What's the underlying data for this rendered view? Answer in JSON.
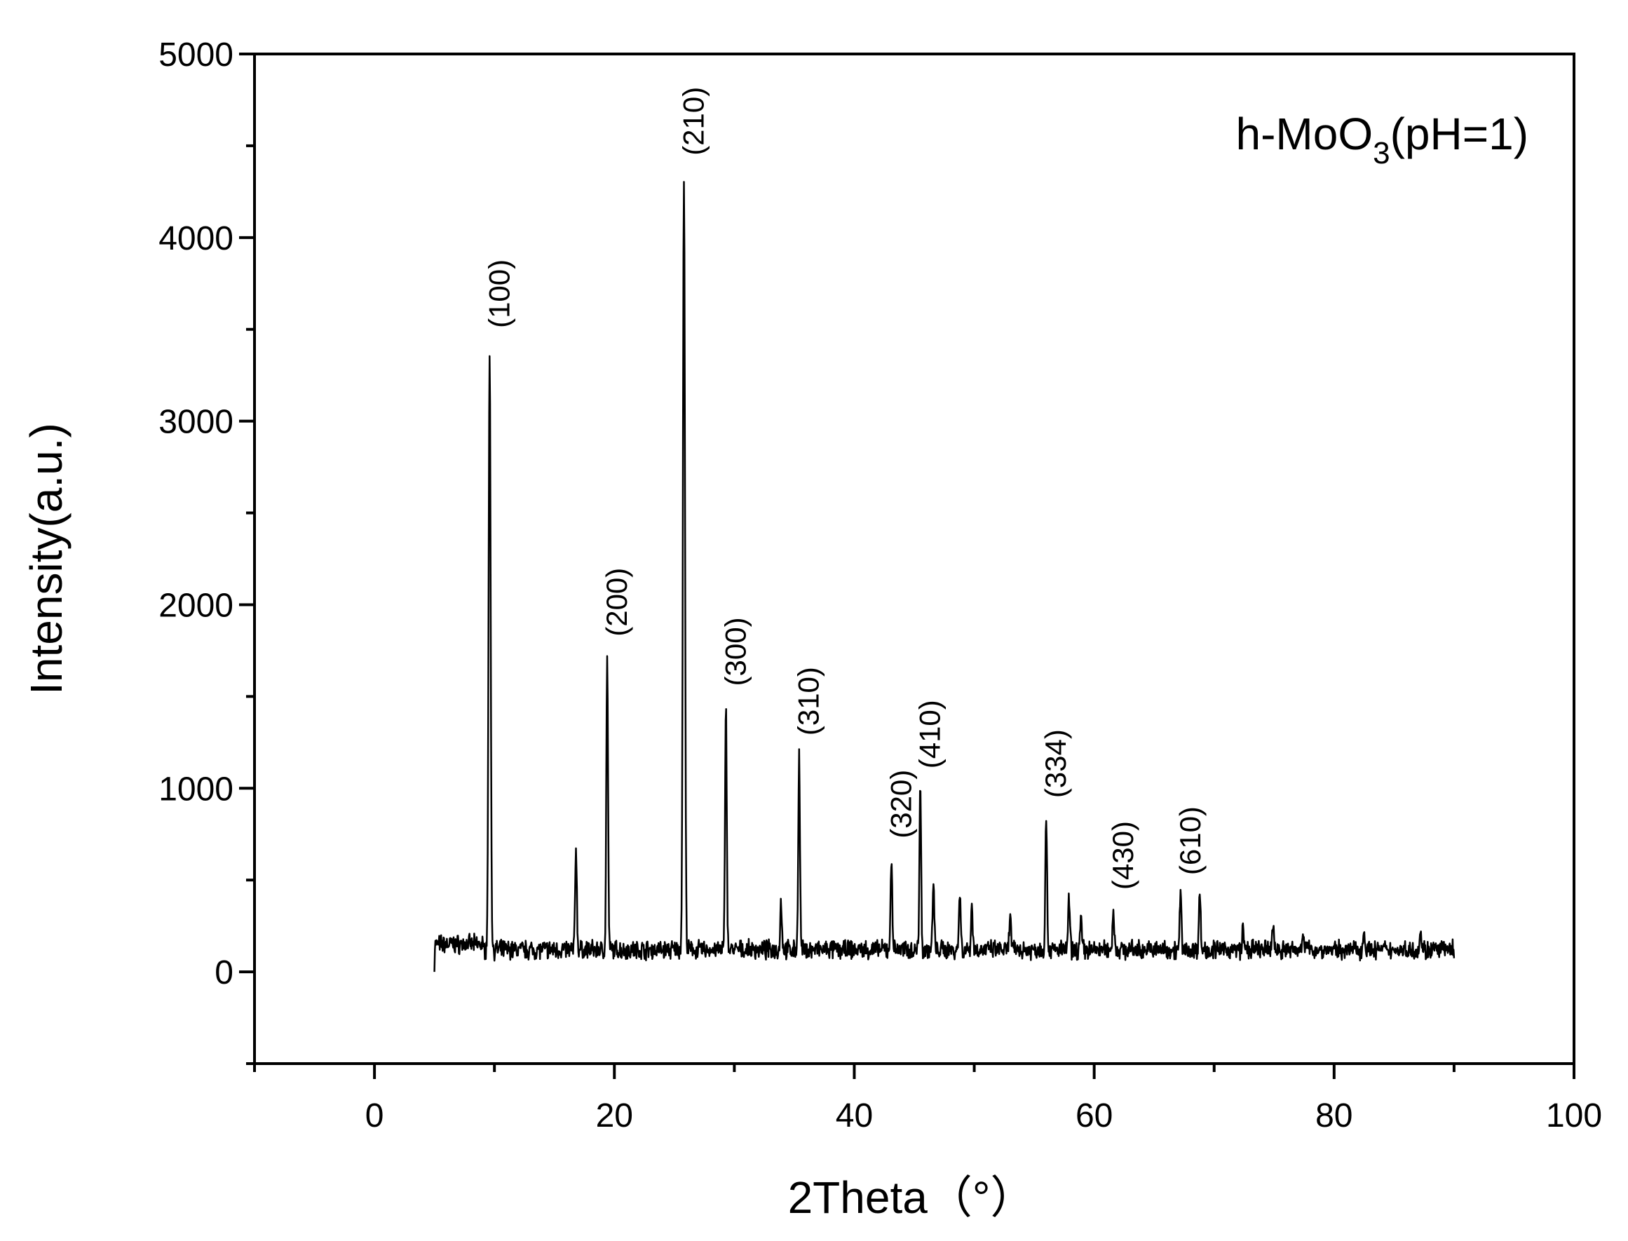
{
  "chart_data": {
    "type": "line",
    "xlabel": "2Theta（°）",
    "ylabel": "Intensity(a.u.)",
    "xlim": [
      -10,
      100
    ],
    "ylim": [
      -500,
      5000
    ],
    "x_ticks": [
      0,
      20,
      40,
      60,
      80,
      100
    ],
    "y_ticks": [
      0,
      1000,
      2000,
      3000,
      4000,
      5000
    ],
    "grid": false,
    "legend": {
      "text_main": "h-MoO",
      "text_sub": "3",
      "text_tail": "(pH=1)",
      "placement": "top-right"
    },
    "series": [
      {
        "x_range": [
          5,
          90
        ],
        "baseline": 120,
        "peaks": [
          {
            "x": 9.6,
            "y": 3400,
            "label": "(100)"
          },
          {
            "x": 16.8,
            "y": 680,
            "label": ""
          },
          {
            "x": 19.4,
            "y": 1720,
            "label": "(200)"
          },
          {
            "x": 25.8,
            "y": 4340,
            "label": "(210)"
          },
          {
            "x": 29.3,
            "y": 1450,
            "label": "(300)"
          },
          {
            "x": 33.9,
            "y": 380,
            "label": ""
          },
          {
            "x": 35.4,
            "y": 1180,
            "label": "(310)"
          },
          {
            "x": 43.1,
            "y": 620,
            "label": "(320)"
          },
          {
            "x": 45.5,
            "y": 1000,
            "label": "(410)"
          },
          {
            "x": 46.6,
            "y": 470,
            "label": ""
          },
          {
            "x": 48.8,
            "y": 440,
            "label": ""
          },
          {
            "x": 49.8,
            "y": 360,
            "label": ""
          },
          {
            "x": 53.0,
            "y": 310,
            "label": ""
          },
          {
            "x": 56.0,
            "y": 840,
            "label": "(334)"
          },
          {
            "x": 57.9,
            "y": 400,
            "label": ""
          },
          {
            "x": 58.9,
            "y": 290,
            "label": ""
          },
          {
            "x": 61.6,
            "y": 340,
            "label": "(430)"
          },
          {
            "x": 67.2,
            "y": 420,
            "label": "(610)"
          },
          {
            "x": 68.8,
            "y": 430,
            "label": ""
          },
          {
            "x": 72.4,
            "y": 230,
            "label": ""
          },
          {
            "x": 74.9,
            "y": 260,
            "label": ""
          },
          {
            "x": 77.4,
            "y": 240,
            "label": ""
          },
          {
            "x": 82.5,
            "y": 230,
            "label": ""
          },
          {
            "x": 87.2,
            "y": 230,
            "label": ""
          }
        ]
      }
    ]
  }
}
